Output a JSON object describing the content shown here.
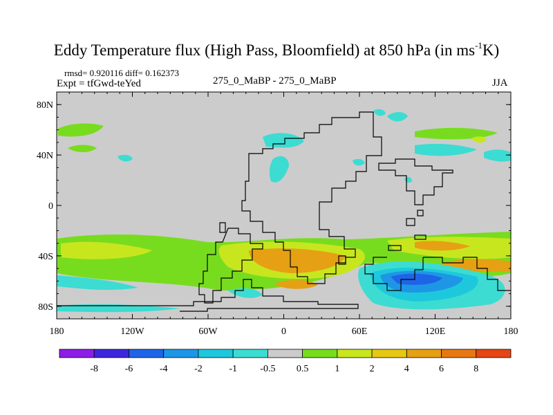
{
  "title": {
    "main": "Eddy Temperature flux (High Pass, Bloomfield) at 850 hPa (in ms",
    "sup": "-1",
    "unit_end": "K)"
  },
  "stats": "rmsd= 0.920116 diff= 0.162373",
  "expt": "Expt = tfGwd-teYed",
  "center_label": "275_0_MaBP - 275_0_MaBP",
  "season": "JJA",
  "map": {
    "projection": "cylindrical-equidistant",
    "lon_range": [
      -180,
      180
    ],
    "lat_range": [
      -90,
      90
    ],
    "background_color": "#cccccc",
    "y_ticks": [
      {
        "value": 80,
        "label": "80N"
      },
      {
        "value": 40,
        "label": "40N"
      },
      {
        "value": 0,
        "label": "0"
      },
      {
        "value": -40,
        "label": "40S"
      },
      {
        "value": -80,
        "label": "80S"
      }
    ],
    "x_ticks": [
      {
        "value": -180,
        "label": "180"
      },
      {
        "value": -120,
        "label": "120W"
      },
      {
        "value": -60,
        "label": "60W"
      },
      {
        "value": 0,
        "label": "0"
      },
      {
        "value": 60,
        "label": "60E"
      },
      {
        "value": 120,
        "label": "120E"
      },
      {
        "value": 180,
        "label": "180"
      }
    ]
  },
  "colorbar": {
    "colors": [
      "#8c1ee6",
      "#3c28dc",
      "#1e64e6",
      "#1e96e6",
      "#1ec8dc",
      "#3cdcd2",
      "#cccccc",
      "#78dc1e",
      "#c8e61e",
      "#e6c814",
      "#e6a014",
      "#e67814",
      "#e64614"
    ],
    "labels": [
      "-8",
      "-6",
      "-4",
      "-2",
      "-1",
      "-0.5",
      "0.5",
      "1",
      "2",
      "4",
      "6",
      "8"
    ]
  }
}
